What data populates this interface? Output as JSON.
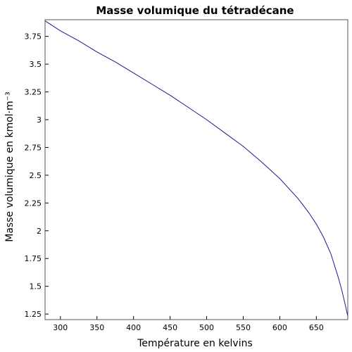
{
  "chart_data": {
    "type": "line",
    "title": "Masse volumique du tétradécane",
    "xlabel": "Température en kelvins",
    "ylabel": "Masse volumique en kmol·m⁻³",
    "xlim": [
      279,
      693
    ],
    "ylim": [
      1.2,
      3.9
    ],
    "grid": false,
    "x_ticks": [
      300,
      350,
      400,
      450,
      500,
      550,
      600,
      650
    ],
    "x_tick_labels": [
      "300",
      "350",
      "400",
      "450",
      "500",
      "550",
      "600",
      "650"
    ],
    "y_ticks": [
      1.25,
      1.5,
      1.75,
      2,
      2.25,
      2.5,
      2.75,
      3,
      3.25,
      3.5,
      3.75
    ],
    "y_tick_labels": [
      "1.25",
      "1.5",
      "1.75",
      "2",
      "2.25",
      "2.5",
      "2.75",
      "3",
      "3.25",
      "3.5",
      "3.75"
    ],
    "series": [
      {
        "color": "#1a1a8c",
        "x": [
          279,
          300,
          325,
          350,
          375,
          400,
          425,
          450,
          475,
          500,
          525,
          550,
          575,
          600,
          625,
          640,
          650,
          660,
          670,
          680,
          685,
          690,
          692,
          693
        ],
        "y": [
          3.89,
          3.8,
          3.71,
          3.61,
          3.52,
          3.42,
          3.32,
          3.22,
          3.11,
          3.0,
          2.88,
          2.76,
          2.62,
          2.47,
          2.29,
          2.16,
          2.06,
          1.94,
          1.79,
          1.58,
          1.46,
          1.32,
          1.26,
          1.23
        ]
      }
    ]
  }
}
